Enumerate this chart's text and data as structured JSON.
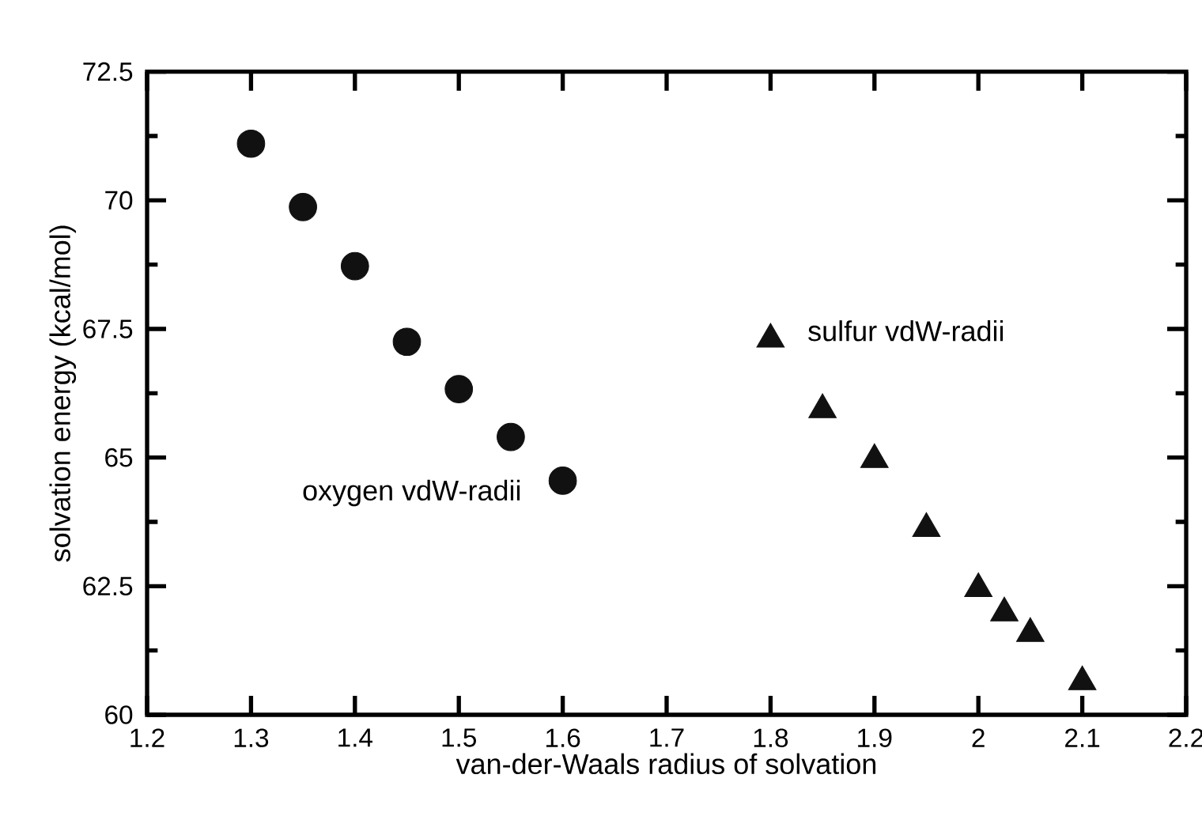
{
  "chart_data": {
    "type": "scatter",
    "xlabel": "van-der-Waals radius of solvation",
    "ylabel": "solvation energy (kcal/mol)",
    "xlim": [
      1.2,
      2.2
    ],
    "ylim": [
      60,
      72.5
    ],
    "xticks": [
      1.2,
      1.3,
      1.4,
      1.5,
      1.6,
      1.7,
      1.8,
      1.9,
      2,
      2.1,
      2.2
    ],
    "yticks": [
      60,
      {
        "value": 61.25,
        "label": null
      },
      62.5,
      {
        "value": 63.75,
        "label": null
      },
      65,
      {
        "value": 66.25,
        "label": null
      },
      67.5,
      {
        "value": 68.75,
        "label": null
      },
      70,
      {
        "value": 71.25,
        "label": null
      },
      72.5
    ],
    "series": [
      {
        "name": "oxygen vdW-radii",
        "color": "#111111",
        "marker": "circle",
        "x": [
          1.3,
          1.35,
          1.4,
          1.45,
          1.5,
          1.55,
          1.6
        ],
        "values": [
          71.1,
          69.87,
          68.72,
          67.25,
          66.33,
          65.4,
          64.55
        ]
      },
      {
        "name": "sulfur vdW-radii",
        "color": "#111111",
        "marker": "triangle",
        "x": [
          1.8,
          1.85,
          1.9,
          1.95,
          2.0,
          2.025,
          2.05,
          2.1
        ],
        "values": [
          67.3,
          65.93,
          64.96,
          63.62,
          62.45,
          61.98,
          61.58,
          60.64
        ]
      }
    ],
    "grid": false,
    "legend": false
  }
}
